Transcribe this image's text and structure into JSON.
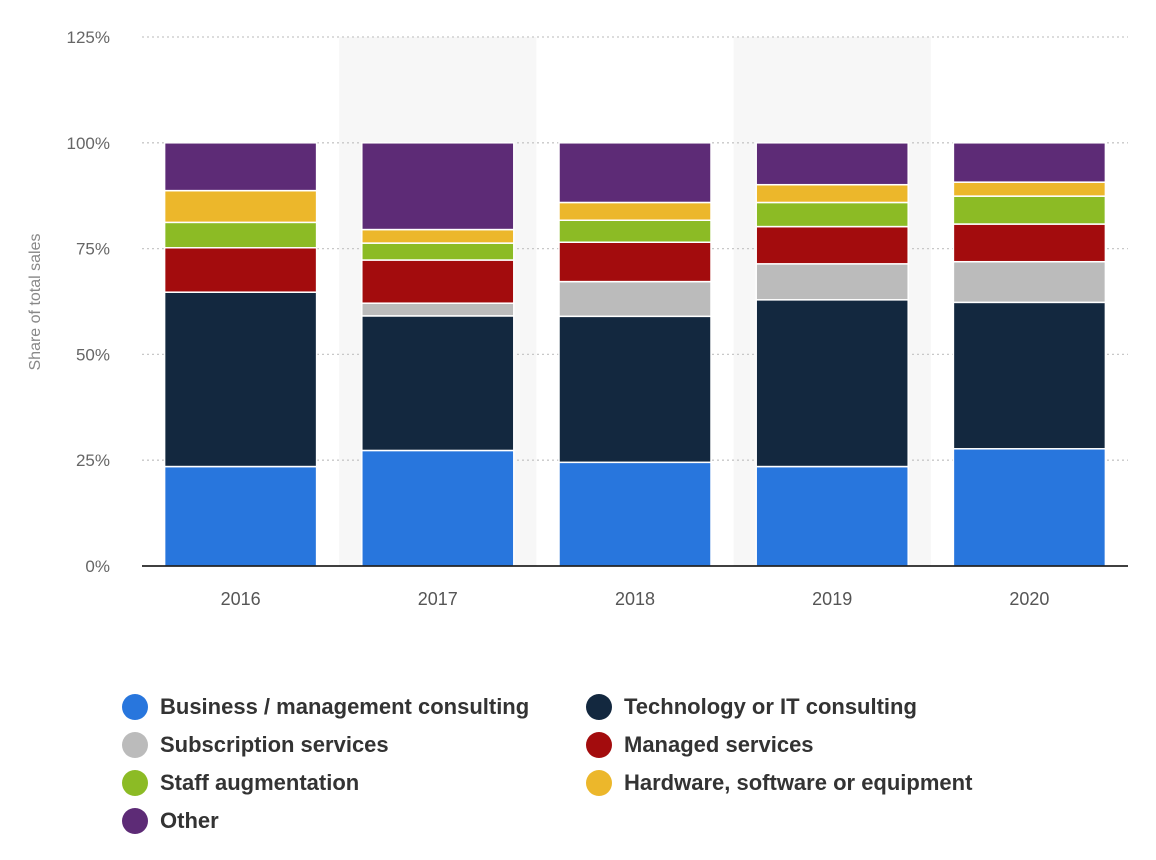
{
  "chart_data": {
    "type": "bar",
    "stacked": true,
    "ylabel": "Share of total sales",
    "xlabel": "",
    "ylim": [
      0,
      125
    ],
    "yticks": [
      0,
      25,
      50,
      75,
      100,
      125
    ],
    "ytick_labels": [
      "0%",
      "25%",
      "50%",
      "75%",
      "100%",
      "125%"
    ],
    "categories": [
      "2016",
      "2017",
      "2018",
      "2019",
      "2020"
    ],
    "grid": true,
    "legend_position": "bottom",
    "series": [
      {
        "name": "Business / management consulting",
        "color": "#2876dd",
        "values": [
          23.5,
          27.3,
          24.5,
          23.5,
          27.7
        ]
      },
      {
        "name": "Technology or IT consulting",
        "color": "#13283f",
        "values": [
          41.2,
          31.8,
          34.5,
          39.4,
          34.6
        ]
      },
      {
        "name": "Subscription services",
        "color": "#bbbbbb",
        "values": [
          0,
          3.0,
          8.2,
          8.5,
          9.6
        ]
      },
      {
        "name": "Managed services",
        "color": "#a30c0d",
        "values": [
          10.5,
          10.2,
          9.3,
          8.8,
          8.9
        ]
      },
      {
        "name": "Staff augmentation",
        "color": "#8cbb25",
        "values": [
          6.0,
          4.0,
          5.2,
          5.7,
          6.6
        ]
      },
      {
        "name": "Hardware, software or equipment",
        "color": "#ecb72b",
        "values": [
          7.5,
          3.2,
          4.2,
          4.2,
          3.3
        ]
      },
      {
        "name": "Other",
        "color": "#5d2b76",
        "values": [
          11.3,
          20.5,
          14.1,
          9.9,
          9.3
        ]
      }
    ]
  }
}
